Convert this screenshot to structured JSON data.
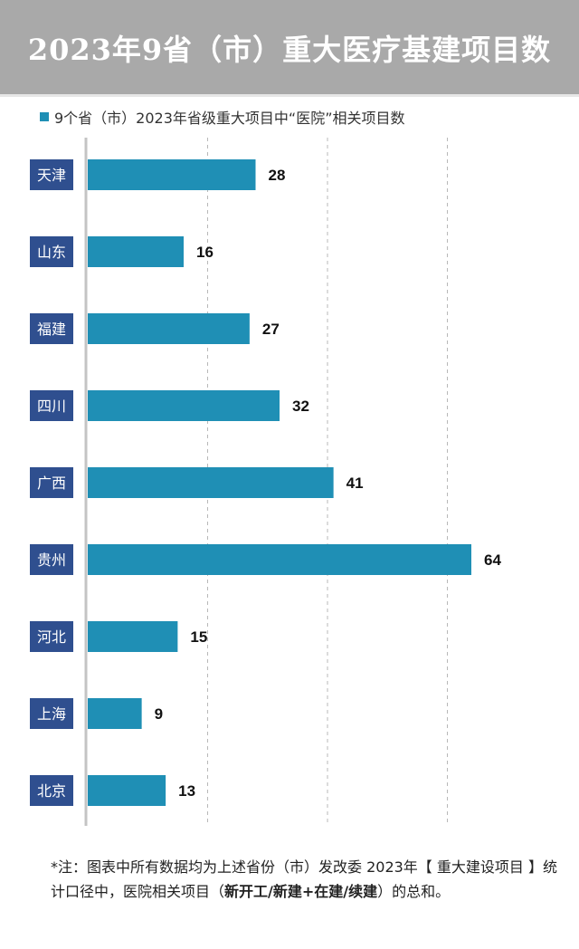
{
  "header": {
    "title": "2023年9省（市）重大医疗基建项目数"
  },
  "colors": {
    "bar": "#1f8fb5",
    "category_box": "#2f4f8f",
    "header_bg": "#a9a9a9"
  },
  "chart_data": {
    "type": "bar",
    "orientation": "horizontal",
    "legend": {
      "label": "9个省（市）2023年省级重大项目中“医院”相关项目数",
      "position": "top-left"
    },
    "categories": [
      "天津",
      "山东",
      "福建",
      "四川",
      "广西",
      "贵州",
      "河北",
      "上海",
      "北京"
    ],
    "series": [
      {
        "name": "9个省（市）2023年省级重大项目中“医院”相关项目数",
        "values": [
          28,
          16,
          27,
          32,
          41,
          64,
          15,
          9,
          13
        ]
      }
    ],
    "xlim": [
      0,
      80
    ],
    "grid": true
  },
  "footnote": {
    "part1": "*注：图表中所有数据均为上述省份（市）发改委 2023年【 重大建设项目 】统计口径中，医院相关项目（",
    "bold": "新开工/新建+在建/续建",
    "part2": "）的总和。"
  }
}
